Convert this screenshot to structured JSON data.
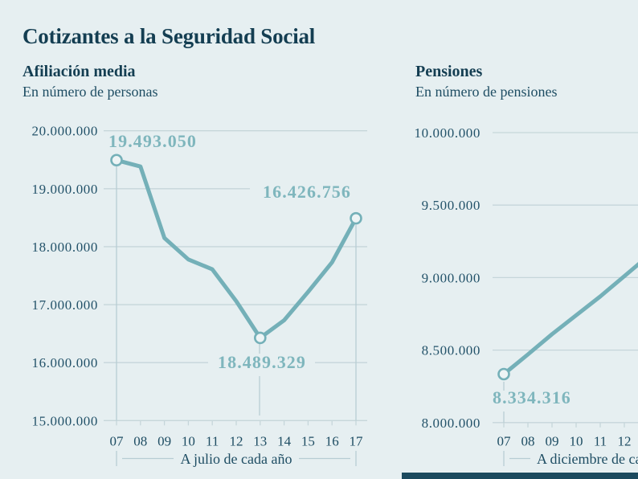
{
  "page": {
    "title": "Cotizantes a la Seguridad Social",
    "background_color": "#e6eff1",
    "title_color": "#143e52",
    "text_color": "#1e4d63",
    "accent_line_color": "#74b0b8",
    "accent_label_color": "#7fb6bd",
    "grid_color": "#c6d6da",
    "guide_color": "#b7cdd3",
    "marker_fill_color": "#edf4f5",
    "footer_bar_color": "#1b4a5e"
  },
  "chart_data": [
    {
      "type": "line",
      "title": "Afiliación media",
      "subtitle": "En número de personas",
      "categories": [
        "07",
        "08",
        "09",
        "10",
        "11",
        "12",
        "13",
        "14",
        "15",
        "16",
        "17"
      ],
      "values": [
        19493050,
        19383000,
        18150000,
        17780000,
        17610000,
        17060000,
        16426756,
        16730000,
        17220000,
        17730000,
        18489329
      ],
      "ylim": [
        15000000,
        20000000
      ],
      "ytick_step": 1000000,
      "ytick_labels": [
        "20.000.000",
        "19.000.000",
        "18.000.000",
        "17.000.000",
        "16.000.000",
        "15.000.000"
      ],
      "xlabel": "A julio de cada año",
      "grid": true,
      "legend": "none",
      "annotations": [
        {
          "index": 0,
          "text": "19.493.050"
        },
        {
          "index": 6,
          "text": "16.426.756"
        },
        {
          "index": 10,
          "text": "18.489.329"
        }
      ],
      "markers": [
        0,
        6,
        10
      ]
    },
    {
      "type": "line",
      "title": "Pensiones",
      "subtitle": "En número de pensiones",
      "categories": [
        "07",
        "08",
        "09",
        "10",
        "11",
        "12"
      ],
      "values": [
        8334316,
        8470000,
        8610000,
        8740000,
        8870000,
        9010000
      ],
      "ylim": [
        8000000,
        10000000
      ],
      "ytick_step": 500000,
      "ytick_labels": [
        "10.000.000",
        "9.500.000",
        "9.000.000",
        "8.500.000",
        "8.000.000"
      ],
      "xlabel": "A diciembre de cada año",
      "grid": true,
      "legend": "none",
      "annotations": [
        {
          "index": 0,
          "text": "8.334.316"
        }
      ],
      "markers": [
        0
      ],
      "clipped_right": true
    }
  ]
}
